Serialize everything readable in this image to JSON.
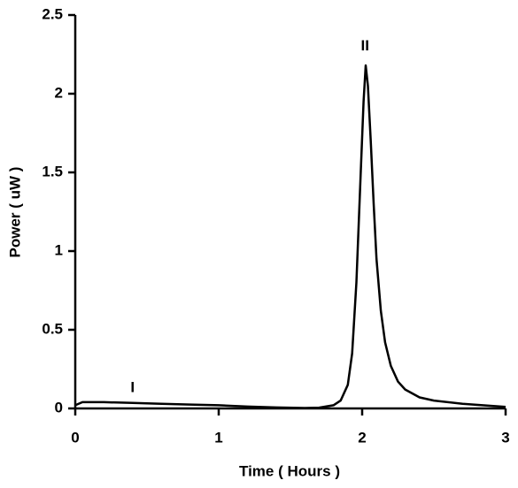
{
  "chart_data": {
    "type": "line",
    "x_label": "Time ( Hours )",
    "y_label": "Power ( uW )",
    "x": [
      0,
      0.05,
      0.2,
      0.4,
      0.6,
      0.8,
      1.0,
      1.2,
      1.4,
      1.6,
      1.7,
      1.8,
      1.85,
      1.9,
      1.93,
      1.96,
      1.99,
      2.01,
      2.025,
      2.04,
      2.06,
      2.08,
      2.1,
      2.13,
      2.16,
      2.2,
      2.25,
      2.3,
      2.4,
      2.5,
      2.7,
      3.0
    ],
    "series": [
      {
        "color": "#000000",
        "values": [
          0.02,
          0.04,
          0.04,
          0.035,
          0.03,
          0.025,
          0.02,
          0.012,
          0.006,
          0.003,
          0.005,
          0.02,
          0.05,
          0.15,
          0.35,
          0.8,
          1.5,
          1.95,
          2.18,
          2.05,
          1.7,
          1.3,
          0.95,
          0.62,
          0.42,
          0.27,
          0.17,
          0.12,
          0.07,
          0.05,
          0.03,
          0.01
        ]
      }
    ],
    "xlim": [
      0,
      3
    ],
    "xticks": [
      0,
      1,
      2,
      3
    ],
    "ylim": [
      0,
      2.5
    ],
    "yticks": [
      0,
      0.5,
      1,
      1.5,
      2,
      2.5
    ],
    "annotations": [
      {
        "text": "I",
        "x": 0.4,
        "y": 0.13
      },
      {
        "text": "II",
        "x": 2.02,
        "y": 2.3
      }
    ]
  }
}
